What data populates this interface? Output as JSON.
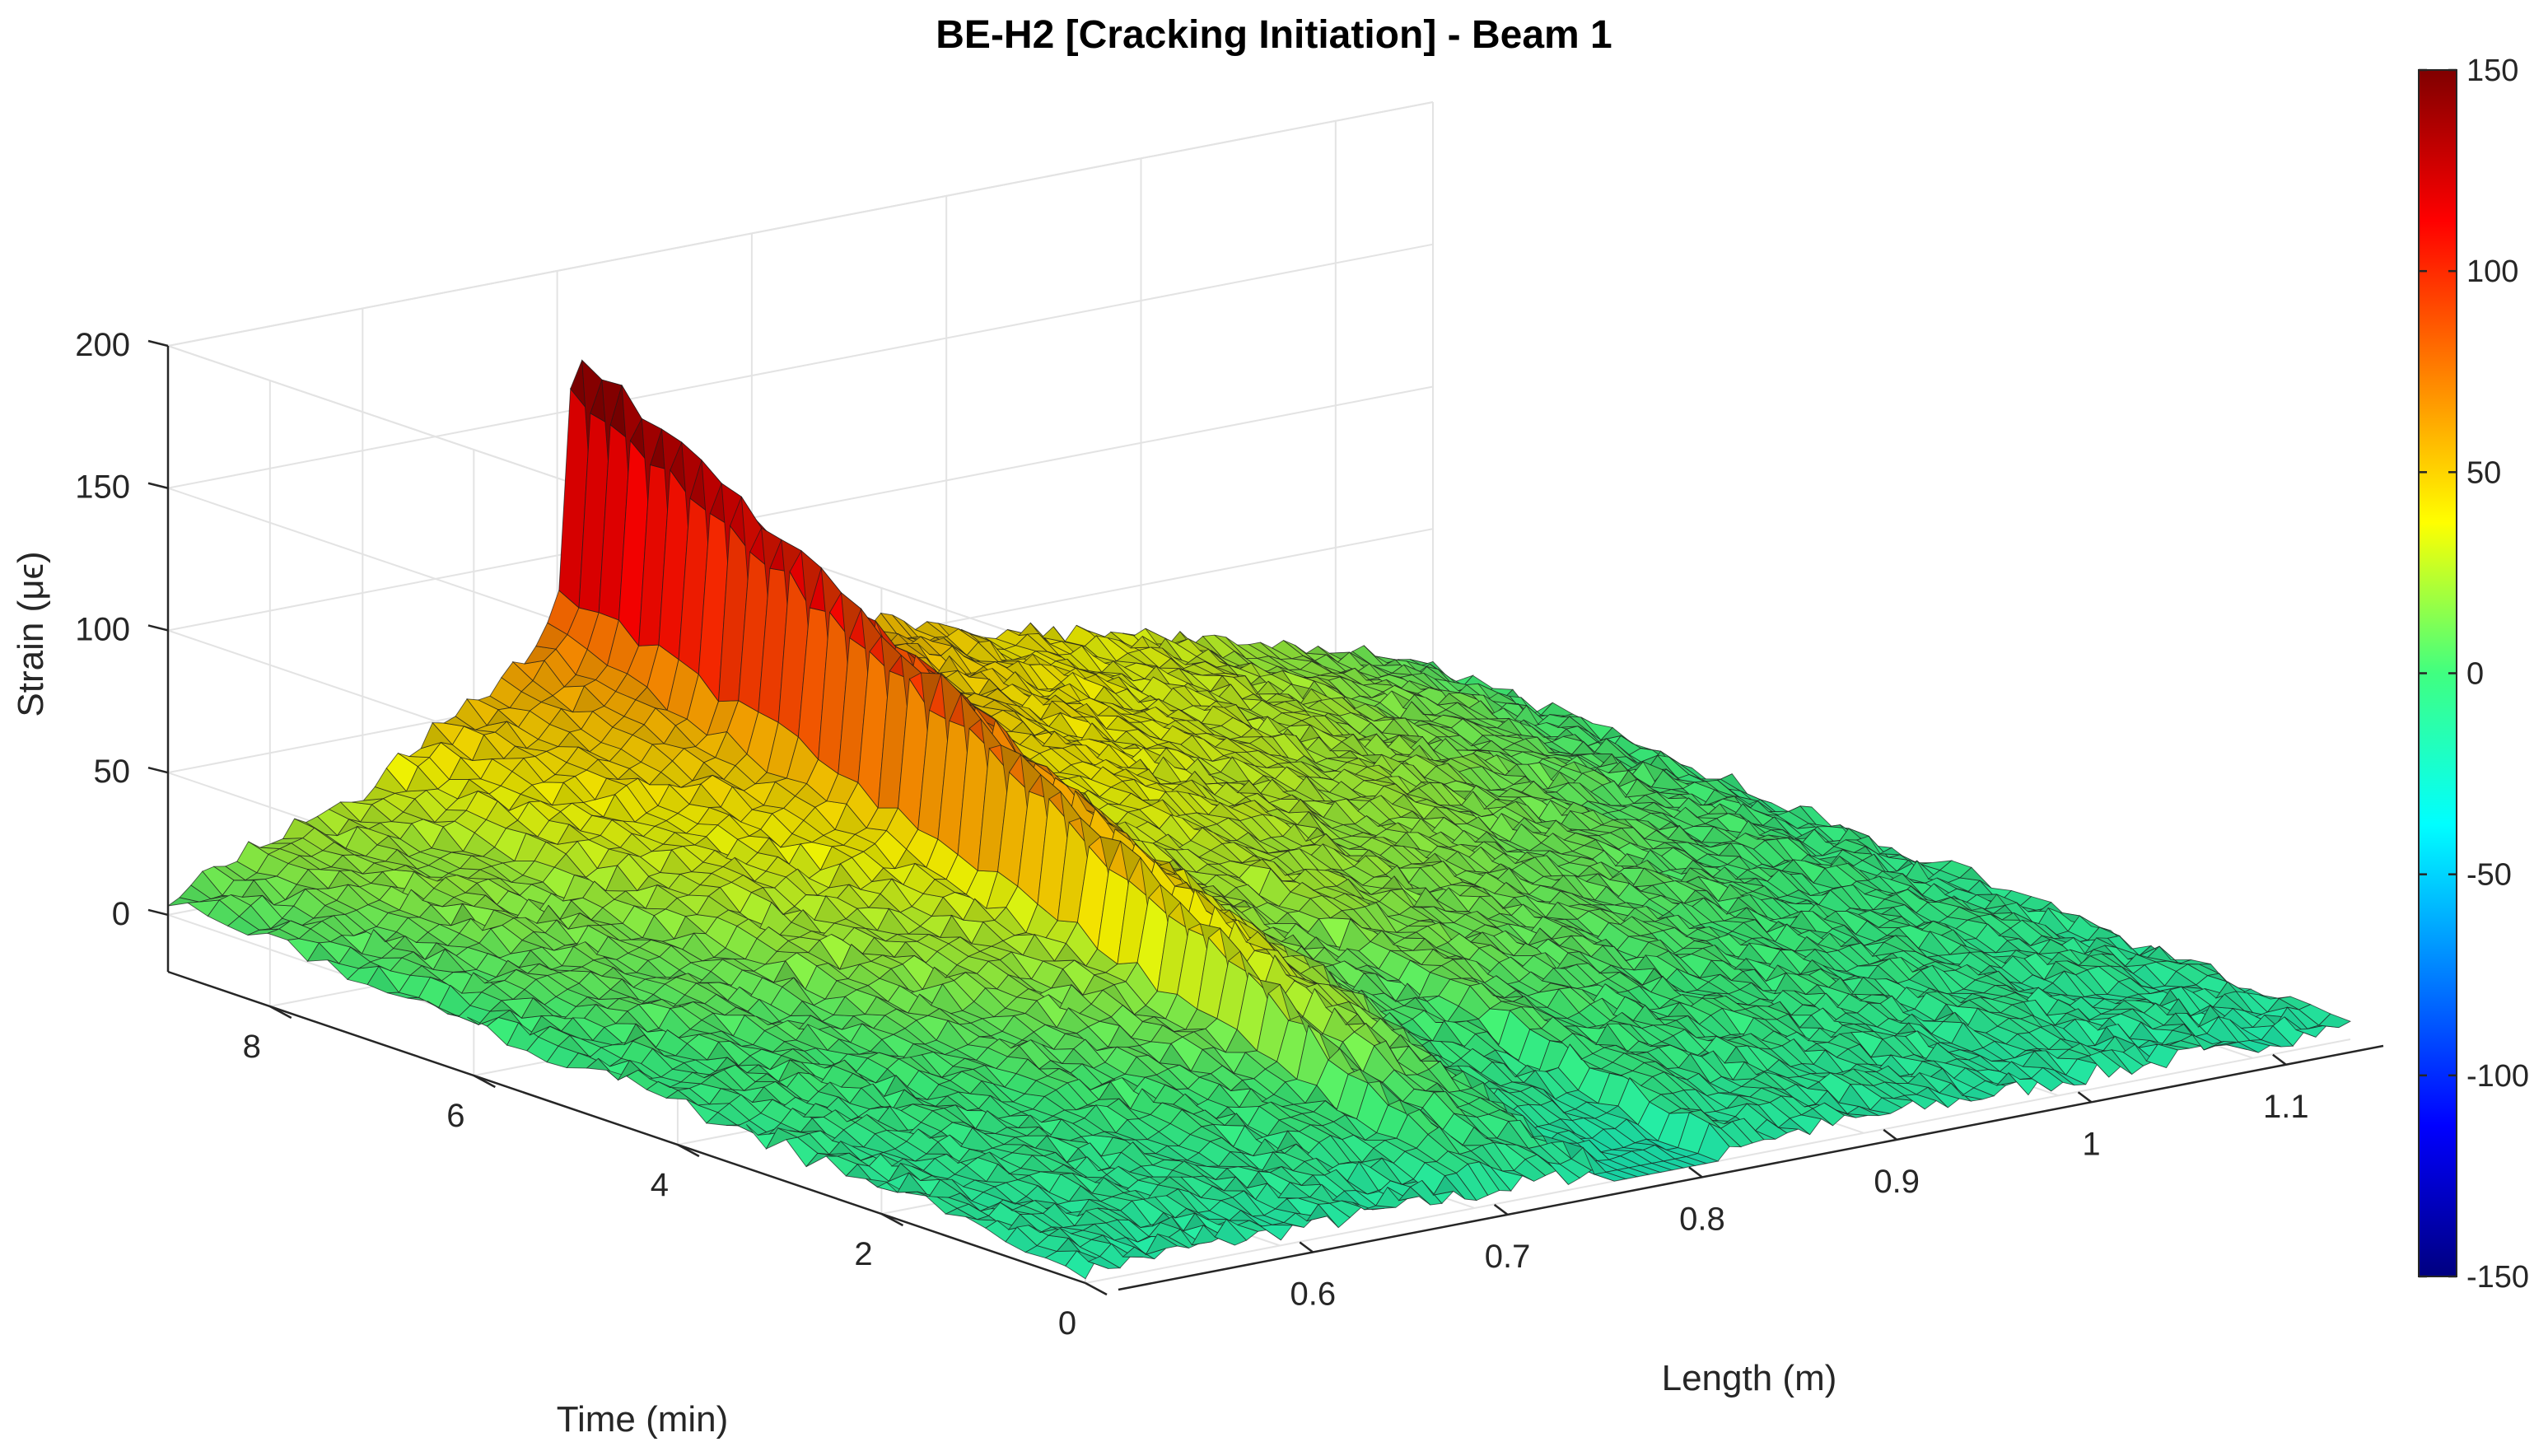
{
  "chart_data": {
    "type": "surface",
    "title": "BE-H2 [Cracking Initiation] - Beam 1",
    "xlabel": "Length (m)",
    "ylabel": "Time (min)",
    "zlabel": "Strain (μϵ)",
    "xlim": [
      0.5,
      1.15
    ],
    "ylim": [
      0,
      9
    ],
    "zlim": [
      -20,
      200
    ],
    "xticks": [
      "0.6",
      "0.7",
      "0.8",
      "0.9",
      "1",
      "1.1"
    ],
    "yticks": [
      "0",
      "2",
      "4",
      "6",
      "8"
    ],
    "zticks": [
      "0",
      "50",
      "100",
      "150",
      "200"
    ],
    "colorbar": {
      "limits": [
        -150,
        150
      ],
      "ticks": [
        "150",
        "100",
        "50",
        "0",
        "-50",
        "-100",
        "-150"
      ],
      "colormap": "jet"
    },
    "grid": true,
    "surface_profile_at_max_time": {
      "length_m": [
        0.5,
        0.55,
        0.6,
        0.62,
        0.64,
        0.66,
        0.68,
        0.7,
        0.71,
        0.72,
        0.73,
        0.75,
        0.78,
        0.8,
        0.85,
        0.9,
        0.95,
        1.0,
        1.05,
        1.1,
        1.15
      ],
      "strain": [
        5,
        20,
        28,
        40,
        48,
        55,
        65,
        78,
        195,
        95,
        150,
        118,
        85,
        72,
        58,
        48,
        40,
        32,
        22,
        14,
        2
      ]
    }
  }
}
